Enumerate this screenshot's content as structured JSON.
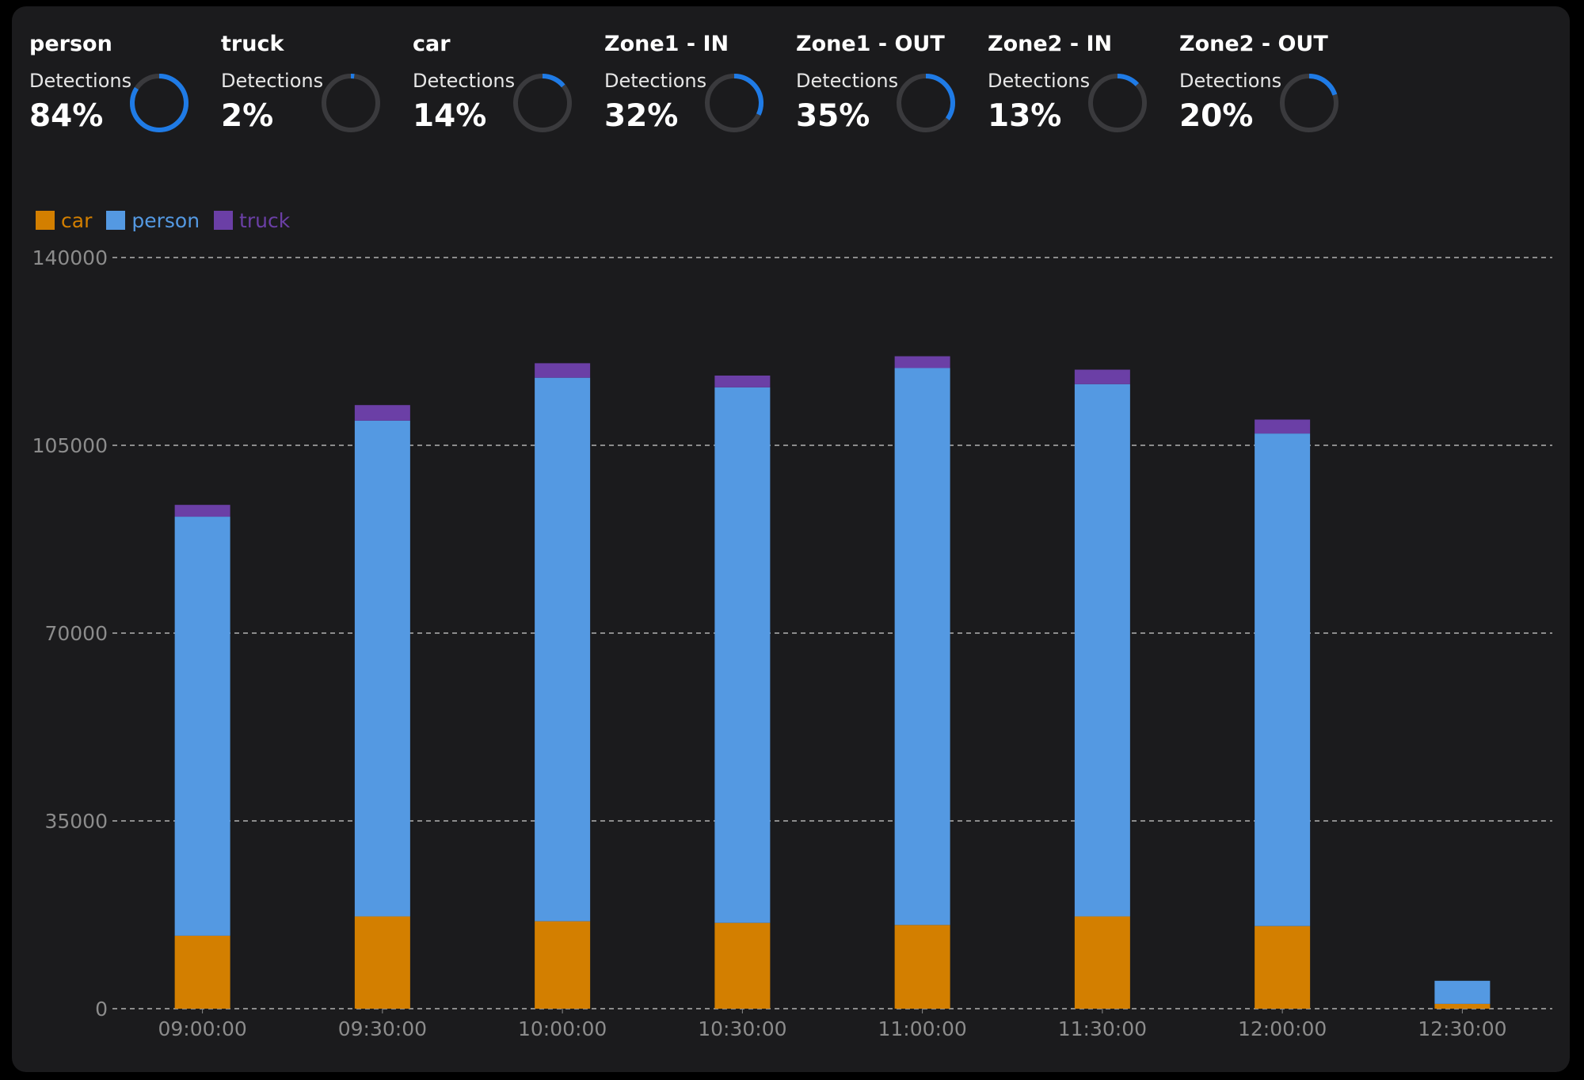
{
  "kpis": [
    {
      "title": "person",
      "label": "Detections",
      "value": "84%",
      "percent": 84
    },
    {
      "title": "truck",
      "label": "Detections",
      "value": "2%",
      "percent": 2
    },
    {
      "title": "car",
      "label": "Detections",
      "value": "14%",
      "percent": 14
    },
    {
      "title": "Zone1 - IN",
      "label": "Detections",
      "value": "32%",
      "percent": 32
    },
    {
      "title": "Zone1 - OUT",
      "label": "Detections",
      "value": "35%",
      "percent": 35
    },
    {
      "title": "Zone2 - IN",
      "label": "Detections",
      "value": "13%",
      "percent": 13
    },
    {
      "title": "Zone2 - OUT",
      "label": "Detections",
      "value": "20%",
      "percent": 20
    }
  ],
  "colors": {
    "ring_track": "#3a3a3d",
    "ring_fill": "#1f7be6",
    "car": "#d37f00",
    "person": "#5499e2",
    "truck": "#6b3fa6",
    "grid": "#cfcfcf",
    "tick": "#8c8c8c"
  },
  "chart_data": {
    "type": "bar",
    "stacked": true,
    "categories": [
      "09:00:00",
      "09:30:00",
      "10:00:00",
      "10:30:00",
      "11:00:00",
      "11:30:00",
      "12:00:00",
      "12:30:00"
    ],
    "series": [
      {
        "name": "car",
        "values": [
          13600,
          17200,
          16300,
          16000,
          15600,
          17200,
          15400,
          900
        ]
      },
      {
        "name": "person",
        "values": [
          78100,
          92400,
          101300,
          99800,
          103800,
          99200,
          91800,
          4300
        ]
      },
      {
        "name": "truck",
        "values": [
          2200,
          2900,
          2700,
          2200,
          2200,
          2700,
          2600,
          0
        ]
      }
    ],
    "yticks": [
      "140000",
      "105000",
      "70000",
      "35000",
      "0"
    ],
    "ylim": [
      0,
      140000
    ],
    "grid": true,
    "legend_position": "top-left",
    "xlabel": "",
    "ylabel": "",
    "title": ""
  }
}
